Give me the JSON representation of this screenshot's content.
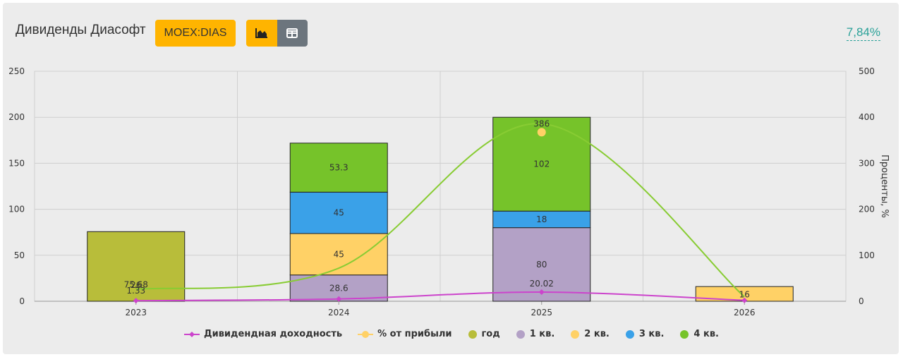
{
  "header": {
    "title": "Дивиденды Диасофт",
    "ticker": "MOEX:DIAS",
    "yield_value": "7,84%"
  },
  "colors": {
    "year": "#b8bd3a",
    "q1": "#b3a1c6",
    "q2": "#ffd166",
    "q3": "#3aa1e8",
    "q4": "#76c32a",
    "yield_line": "#cc44cc",
    "profit_line": "#88cc33",
    "profit_marker": "#ffd166"
  },
  "chart_data": {
    "type": "bar",
    "categories": [
      "2023",
      "2024",
      "2025",
      "2026"
    ],
    "stacked": true,
    "ylim": [
      0,
      250
    ],
    "y_ticks": [
      0,
      50,
      100,
      150,
      200,
      250
    ],
    "y2lim": [
      0,
      500
    ],
    "y2_ticks": [
      0,
      100,
      200,
      300,
      400,
      500
    ],
    "y2label": "Проценты, %",
    "grid": true,
    "legend_position": "bottom",
    "series": [
      {
        "name": "год",
        "key": "year",
        "values": [
          75.68,
          null,
          null,
          null
        ]
      },
      {
        "name": "1 кв.",
        "key": "q1",
        "values": [
          null,
          28.6,
          80,
          null
        ]
      },
      {
        "name": "2 кв.",
        "key": "q2",
        "values": [
          null,
          45,
          null,
          16
        ]
      },
      {
        "name": "3 кв.",
        "key": "q3",
        "values": [
          null,
          45,
          18,
          null
        ]
      },
      {
        "name": "4 кв.",
        "key": "q4",
        "values": [
          null,
          53.3,
          102,
          null
        ]
      }
    ],
    "bar_labels": [
      {
        "category": "2023",
        "series": "year",
        "text": "75.68"
      },
      {
        "category": "2024",
        "series": "q1",
        "text": "28.6"
      },
      {
        "category": "2024",
        "series": "q2",
        "text": "45"
      },
      {
        "category": "2024",
        "series": "q3",
        "text": "45"
      },
      {
        "category": "2024",
        "series": "q4",
        "text": "53.3"
      },
      {
        "category": "2025",
        "series": "q1",
        "text": "80"
      },
      {
        "category": "2025",
        "series": "q3",
        "text": "18"
      },
      {
        "category": "2025",
        "series": "q4",
        "text": "102"
      },
      {
        "category": "2026",
        "series": "q2",
        "text": "16"
      }
    ],
    "lines": [
      {
        "name": "Дивидендная доходность",
        "key": "yield_line",
        "axis": "y2",
        "values": [
          1.33,
          5,
          20.02,
          2
        ],
        "labels": [
          "1.33",
          "",
          "20.02",
          ""
        ]
      },
      {
        "name": "% от прибыли",
        "key": "profit_line",
        "axis": "y2",
        "values": [
          26,
          72,
          386,
          10
        ],
        "labels": [
          "26",
          "",
          "386",
          ""
        ]
      }
    ]
  },
  "legend": [
    {
      "label": "Дивидендная доходность",
      "kind": "line",
      "color_key": "yield_line"
    },
    {
      "label": "% от прибыли",
      "kind": "line-marker",
      "color_key": "profit_marker"
    },
    {
      "label": "год",
      "kind": "dot",
      "color_key": "year"
    },
    {
      "label": "1 кв.",
      "kind": "dot",
      "color_key": "q1"
    },
    {
      "label": "2 кв.",
      "kind": "dot",
      "color_key": "q2"
    },
    {
      "label": "3 кв.",
      "kind": "dot",
      "color_key": "q3"
    },
    {
      "label": "4 кв.",
      "kind": "dot",
      "color_key": "q4"
    }
  ]
}
